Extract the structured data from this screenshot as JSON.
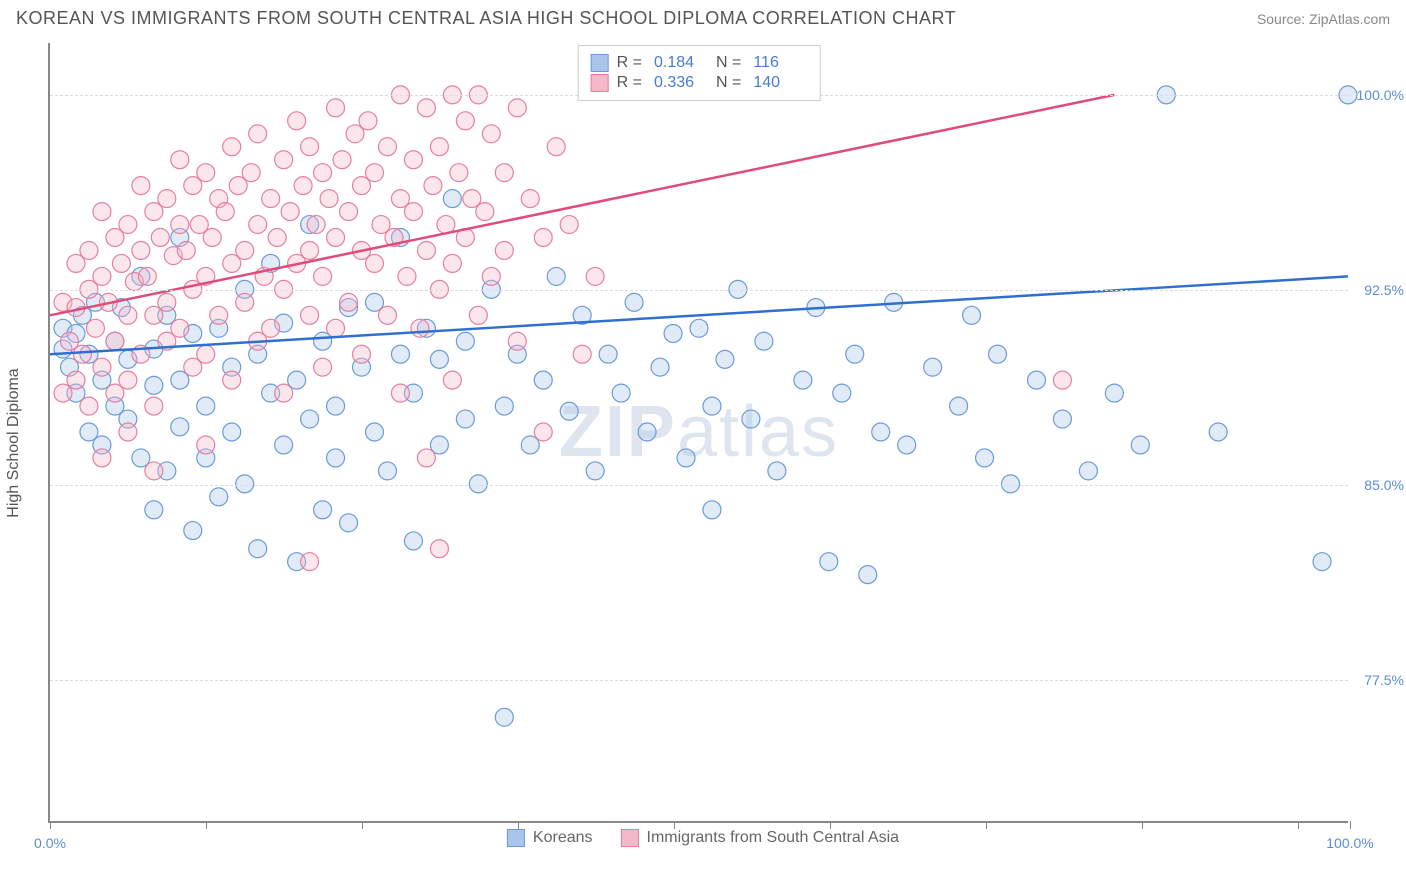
{
  "title": "KOREAN VS IMMIGRANTS FROM SOUTH CENTRAL ASIA HIGH SCHOOL DIPLOMA CORRELATION CHART",
  "source": "Source: ZipAtlas.com",
  "watermark_bold": "ZIP",
  "watermark_rest": "atlas",
  "ylabel": "High School Diploma",
  "chart": {
    "type": "scatter",
    "background_color": "#ffffff",
    "grid_color": "#dddddd",
    "axis_color": "#888888",
    "xlim": [
      0,
      100
    ],
    "ylim": [
      72.0,
      102.0
    ],
    "xtick_positions": [
      0,
      12,
      24,
      36,
      48,
      60,
      72,
      84,
      96,
      100
    ],
    "xlabels": [
      {
        "x": 0,
        "text": "0.0%"
      },
      {
        "x": 100,
        "text": "100.0%"
      }
    ],
    "yticks": [
      {
        "y": 77.5,
        "text": "77.5%"
      },
      {
        "y": 85.0,
        "text": "85.0%"
      },
      {
        "y": 92.5,
        "text": "92.5%"
      },
      {
        "y": 100.0,
        "text": "100.0%"
      }
    ],
    "marker_radius": 9,
    "marker_fill_opacity": 0.35,
    "marker_stroke_width": 1.2,
    "trend_line_width": 2.5,
    "series": [
      {
        "name": "Koreans",
        "color_fill": "#a9c6ea",
        "color_stroke": "#6a9bd8",
        "trend_color": "#2f6fd0",
        "r": "0.184",
        "n": "116",
        "trend": {
          "x1": 0,
          "y1": 90.0,
          "x2": 100,
          "y2": 93.0
        },
        "points": [
          [
            1,
            90.2
          ],
          [
            1,
            91.0
          ],
          [
            1.5,
            89.5
          ],
          [
            2,
            90.8
          ],
          [
            2,
            88.5
          ],
          [
            2.5,
            91.5
          ],
          [
            3,
            87.0
          ],
          [
            3,
            90.0
          ],
          [
            3.5,
            92.0
          ],
          [
            4,
            89.0
          ],
          [
            4,
            86.5
          ],
          [
            5,
            90.5
          ],
          [
            5,
            88.0
          ],
          [
            5.5,
            91.8
          ],
          [
            6,
            87.5
          ],
          [
            6,
            89.8
          ],
          [
            7,
            93.0
          ],
          [
            7,
            86.0
          ],
          [
            8,
            90.2
          ],
          [
            8,
            88.8
          ],
          [
            8,
            84.0
          ],
          [
            9,
            91.5
          ],
          [
            9,
            85.5
          ],
          [
            10,
            89.0
          ],
          [
            10,
            87.2
          ],
          [
            10,
            94.5
          ],
          [
            11,
            83.2
          ],
          [
            11,
            90.8
          ],
          [
            12,
            88.0
          ],
          [
            12,
            86.0
          ],
          [
            13,
            91.0
          ],
          [
            13,
            84.5
          ],
          [
            14,
            89.5
          ],
          [
            14,
            87.0
          ],
          [
            15,
            92.5
          ],
          [
            15,
            85.0
          ],
          [
            16,
            90.0
          ],
          [
            16,
            82.5
          ],
          [
            17,
            88.5
          ],
          [
            17,
            93.5
          ],
          [
            18,
            86.5
          ],
          [
            18,
            91.2
          ],
          [
            19,
            82.0
          ],
          [
            19,
            89.0
          ],
          [
            20,
            87.5
          ],
          [
            20,
            95.0
          ],
          [
            21,
            90.5
          ],
          [
            21,
            84.0
          ],
          [
            22,
            88.0
          ],
          [
            22,
            86.0
          ],
          [
            23,
            91.8
          ],
          [
            23,
            83.5
          ],
          [
            24,
            89.5
          ],
          [
            25,
            87.0
          ],
          [
            25,
            92.0
          ],
          [
            26,
            85.5
          ],
          [
            27,
            90.0
          ],
          [
            27,
            94.5
          ],
          [
            28,
            88.5
          ],
          [
            28,
            82.8
          ],
          [
            29,
            91.0
          ],
          [
            30,
            86.5
          ],
          [
            30,
            89.8
          ],
          [
            31,
            96.0
          ],
          [
            32,
            87.5
          ],
          [
            32,
            90.5
          ],
          [
            33,
            85.0
          ],
          [
            34,
            92.5
          ],
          [
            35,
            88.0
          ],
          [
            35,
            76.0
          ],
          [
            36,
            90.0
          ],
          [
            37,
            86.5
          ],
          [
            38,
            89.0
          ],
          [
            39,
            93.0
          ],
          [
            40,
            87.8
          ],
          [
            41,
            91.5
          ],
          [
            42,
            85.5
          ],
          [
            43,
            90.0
          ],
          [
            44,
            88.5
          ],
          [
            45,
            92.0
          ],
          [
            46,
            87.0
          ],
          [
            47,
            89.5
          ],
          [
            48,
            90.8
          ],
          [
            49,
            86.0
          ],
          [
            50,
            91.0
          ],
          [
            51,
            88.0
          ],
          [
            51,
            84.0
          ],
          [
            52,
            89.8
          ],
          [
            53,
            92.5
          ],
          [
            54,
            87.5
          ],
          [
            55,
            90.5
          ],
          [
            56,
            85.5
          ],
          [
            58,
            89.0
          ],
          [
            59,
            91.8
          ],
          [
            60,
            82.0
          ],
          [
            61,
            88.5
          ],
          [
            62,
            90.0
          ],
          [
            63,
            81.5
          ],
          [
            64,
            87.0
          ],
          [
            65,
            92.0
          ],
          [
            66,
            86.5
          ],
          [
            68,
            89.5
          ],
          [
            70,
            88.0
          ],
          [
            71,
            91.5
          ],
          [
            72,
            86.0
          ],
          [
            73,
            90.0
          ],
          [
            74,
            85.0
          ],
          [
            76,
            89.0
          ],
          [
            78,
            87.5
          ],
          [
            80,
            85.5
          ],
          [
            82,
            88.5
          ],
          [
            84,
            86.5
          ],
          [
            86,
            100.0
          ],
          [
            90,
            87.0
          ],
          [
            98,
            82.0
          ],
          [
            100,
            100.0
          ]
        ]
      },
      {
        "name": "Immigrants from South Central Asia",
        "color_fill": "#f4b8c8",
        "color_stroke": "#e57fa0",
        "trend_color": "#e04b7a",
        "r": "0.336",
        "n": "140",
        "trend": {
          "x1": 0,
          "y1": 91.5,
          "x2": 82,
          "y2": 100.0
        },
        "points": [
          [
            1,
            88.5
          ],
          [
            1,
            92.0
          ],
          [
            1.5,
            90.5
          ],
          [
            2,
            91.8
          ],
          [
            2,
            89.0
          ],
          [
            2,
            93.5
          ],
          [
            2.5,
            90.0
          ],
          [
            3,
            92.5
          ],
          [
            3,
            88.0
          ],
          [
            3,
            94.0
          ],
          [
            3.5,
            91.0
          ],
          [
            4,
            93.0
          ],
          [
            4,
            89.5
          ],
          [
            4,
            95.5
          ],
          [
            4.5,
            92.0
          ],
          [
            5,
            90.5
          ],
          [
            5,
            94.5
          ],
          [
            5,
            88.5
          ],
          [
            5.5,
            93.5
          ],
          [
            6,
            91.5
          ],
          [
            6,
            95.0
          ],
          [
            6,
            89.0
          ],
          [
            6.5,
            92.8
          ],
          [
            7,
            94.0
          ],
          [
            7,
            90.0
          ],
          [
            7,
            96.5
          ],
          [
            7.5,
            93.0
          ],
          [
            8,
            91.5
          ],
          [
            8,
            95.5
          ],
          [
            8,
            88.0
          ],
          [
            8.5,
            94.5
          ],
          [
            9,
            92.0
          ],
          [
            9,
            96.0
          ],
          [
            9,
            90.5
          ],
          [
            9.5,
            93.8
          ],
          [
            10,
            95.0
          ],
          [
            10,
            91.0
          ],
          [
            10,
            97.5
          ],
          [
            10.5,
            94.0
          ],
          [
            11,
            92.5
          ],
          [
            11,
            96.5
          ],
          [
            11,
            89.5
          ],
          [
            11.5,
            95.0
          ],
          [
            12,
            93.0
          ],
          [
            12,
            97.0
          ],
          [
            12,
            90.0
          ],
          [
            12.5,
            94.5
          ],
          [
            13,
            96.0
          ],
          [
            13,
            91.5
          ],
          [
            13.5,
            95.5
          ],
          [
            14,
            93.5
          ],
          [
            14,
            98.0
          ],
          [
            14,
            89.0
          ],
          [
            14.5,
            96.5
          ],
          [
            15,
            94.0
          ],
          [
            15,
            92.0
          ],
          [
            15.5,
            97.0
          ],
          [
            16,
            95.0
          ],
          [
            16,
            90.5
          ],
          [
            16,
            98.5
          ],
          [
            16.5,
            93.0
          ],
          [
            17,
            96.0
          ],
          [
            17,
            91.0
          ],
          [
            17.5,
            94.5
          ],
          [
            18,
            97.5
          ],
          [
            18,
            92.5
          ],
          [
            18,
            88.5
          ],
          [
            18.5,
            95.5
          ],
          [
            19,
            93.5
          ],
          [
            19,
            99.0
          ],
          [
            19.5,
            96.5
          ],
          [
            20,
            91.5
          ],
          [
            20,
            94.0
          ],
          [
            20,
            98.0
          ],
          [
            20.5,
            95.0
          ],
          [
            21,
            93.0
          ],
          [
            21,
            97.0
          ],
          [
            21,
            89.5
          ],
          [
            21.5,
            96.0
          ],
          [
            22,
            94.5
          ],
          [
            22,
            99.5
          ],
          [
            22,
            91.0
          ],
          [
            22.5,
            97.5
          ],
          [
            23,
            95.5
          ],
          [
            23,
            92.0
          ],
          [
            23.5,
            98.5
          ],
          [
            24,
            94.0
          ],
          [
            24,
            96.5
          ],
          [
            24,
            90.0
          ],
          [
            24.5,
            99.0
          ],
          [
            25,
            93.5
          ],
          [
            25,
            97.0
          ],
          [
            25.5,
            95.0
          ],
          [
            26,
            91.5
          ],
          [
            26,
            98.0
          ],
          [
            26.5,
            94.5
          ],
          [
            27,
            96.0
          ],
          [
            27,
            88.5
          ],
          [
            27,
            100.0
          ],
          [
            27.5,
            93.0
          ],
          [
            28,
            97.5
          ],
          [
            28,
            95.5
          ],
          [
            28.5,
            91.0
          ],
          [
            29,
            99.5
          ],
          [
            29,
            94.0
          ],
          [
            29,
            86.0
          ],
          [
            29.5,
            96.5
          ],
          [
            30,
            92.5
          ],
          [
            30,
            98.0
          ],
          [
            30.5,
            95.0
          ],
          [
            31,
            100.0
          ],
          [
            31,
            93.5
          ],
          [
            31,
            89.0
          ],
          [
            31.5,
            97.0
          ],
          [
            32,
            94.5
          ],
          [
            32,
            99.0
          ],
          [
            32.5,
            96.0
          ],
          [
            33,
            91.5
          ],
          [
            33,
            100.0
          ],
          [
            33.5,
            95.5
          ],
          [
            34,
            98.5
          ],
          [
            34,
            93.0
          ],
          [
            35,
            97.0
          ],
          [
            35,
            94.0
          ],
          [
            36,
            99.5
          ],
          [
            36,
            90.5
          ],
          [
            37,
            96.0
          ],
          [
            38,
            94.5
          ],
          [
            38,
            87.0
          ],
          [
            39,
            98.0
          ],
          [
            40,
            95.0
          ],
          [
            41,
            90.0
          ],
          [
            42,
            93.0
          ],
          [
            20,
            82.0
          ],
          [
            30,
            82.5
          ],
          [
            8,
            85.5
          ],
          [
            12,
            86.5
          ],
          [
            6,
            87.0
          ],
          [
            4,
            86.0
          ],
          [
            78,
            89.0
          ]
        ]
      }
    ]
  },
  "legend_top": {
    "r_label": "R =",
    "n_label": "N ="
  },
  "legend_bottom": {
    "items": [
      "Koreans",
      "Immigrants from South Central Asia"
    ]
  }
}
